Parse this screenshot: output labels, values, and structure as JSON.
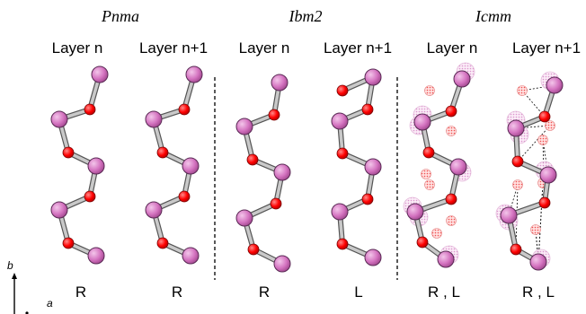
{
  "groups": [
    {
      "title": "Pnma"
    },
    {
      "title": "Ibm2"
    },
    {
      "title": "Icmm"
    }
  ],
  "columns": [
    {
      "header": "Layer n",
      "chirality": "R"
    },
    {
      "header": "Layer n+1",
      "chirality": "R"
    },
    {
      "header": "Layer n",
      "chirality": "R"
    },
    {
      "header": "Layer n+1",
      "chirality": "L"
    },
    {
      "header": "Layer n",
      "chirality": "R , L"
    },
    {
      "header": "Layer n+1",
      "chirality": "R , L"
    }
  ],
  "axes": {
    "b": "b",
    "a": "a"
  },
  "colors": {
    "metal_atom": "#d473c0",
    "oxygen_atom": "#ff0000",
    "bond": "#aaaaaa",
    "disordered_metal": "#f2cdea",
    "disordered_oxygen": "#f7a0a0",
    "divider": "#000000"
  }
}
